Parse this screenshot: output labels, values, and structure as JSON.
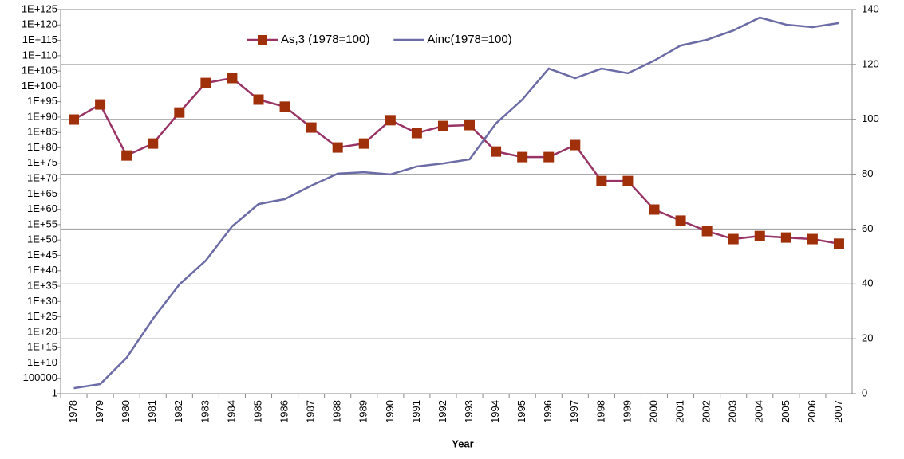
{
  "chart_data": {
    "type": "line",
    "x_label": "Year",
    "categories": [
      "1978",
      "1979",
      "1980",
      "1981",
      "1982",
      "1983",
      "1984",
      "1985",
      "1986",
      "1987",
      "1988",
      "1989",
      "1990",
      "1991",
      "1992",
      "1993",
      "1994",
      "1995",
      "1996",
      "1997",
      "1998",
      "1999",
      "2000",
      "2001",
      "2002",
      "2003",
      "2004",
      "2005",
      "2006",
      "2007"
    ],
    "series": [
      {
        "name": "As,3 (1978=100)",
        "color": "#993366",
        "marker_color": "#a0300a",
        "marker": "square",
        "axis": "y",
        "values": [
          1.6e+89,
          1.3e+94,
          3.2e+77,
          2.5e+81,
          3.2e+91,
          1.3e+101,
          5e+102,
          5e+95,
          2.5e+93,
          4e+86,
          1.3e+80,
          2.5e+81,
          1e+89,
          6.3e+84,
          1.3e+87,
          2.5e+87,
          6.3e+78,
          1e+77,
          1e+77,
          8e+80,
          1.6e+69,
          1.6e+69,
          8e+59,
          2e+56,
          8e+52,
          2e+50,
          2e+51,
          6.3e+50,
          2e+50,
          6.3e+48
        ]
      },
      {
        "name": "Ainc(1978=100)",
        "color": "#6b6ba6",
        "marker": "none",
        "axis": "y2",
        "values": [
          2.0,
          3.5,
          13.1,
          27.3,
          39.8,
          48.5,
          61,
          69.1,
          70.9,
          75.8,
          80.2,
          80.7,
          79.9,
          82.8,
          83.9,
          85.4,
          98.5,
          107.2,
          118.5,
          115,
          118.5,
          116.8,
          121.4,
          126.9,
          129,
          132.4,
          137.1,
          134.5,
          133.6,
          135.1
        ]
      }
    ],
    "ylog": true,
    "ylim": [
      1,
      1e+125
    ],
    "yticks": [
      1,
      100000,
      {
        "value": 10000000000.0,
        "label": "1E+10"
      },
      {
        "value": 1000000000000000.0,
        "label": "1E+15"
      },
      {
        "value": 1e+20,
        "label": "1E+20"
      },
      {
        "value": 1e+25,
        "label": "1E+25"
      },
      {
        "value": 1e+30,
        "label": "1E+30"
      },
      {
        "value": 1e+35,
        "label": "1E+35"
      },
      {
        "value": 1e+40,
        "label": "1E+40"
      },
      {
        "value": 1e+45,
        "label": "1E+45"
      },
      {
        "value": 1e+50,
        "label": "1E+50"
      },
      {
        "value": 1e+55,
        "label": "1E+55"
      },
      {
        "value": 1e+60,
        "label": "1E+60"
      },
      {
        "value": 1e+65,
        "label": "1E+65"
      },
      {
        "value": 1e+70,
        "label": "1E+70"
      },
      {
        "value": 1e+75,
        "label": "1E+75"
      },
      {
        "value": 1e+80,
        "label": "1E+80"
      },
      {
        "value": 1e+85,
        "label": "1E+85"
      },
      {
        "value": 1e+90,
        "label": "1E+90"
      },
      {
        "value": 1e+95,
        "label": "1E+95"
      },
      {
        "value": 1e+100,
        "label": "1E+100"
      },
      {
        "value": 1e+105,
        "label": "1E+105"
      },
      {
        "value": 1e+110,
        "label": "1E+110"
      },
      {
        "value": 1e+115,
        "label": "1E+115"
      },
      {
        "value": 1e+120,
        "label": "1E+120"
      },
      {
        "value": 1e+125,
        "label": "1E+125"
      }
    ],
    "y2lim": [
      0,
      140
    ],
    "y2ticks": [
      0,
      20,
      40,
      60,
      80,
      100,
      120,
      140
    ],
    "grid": true,
    "legend": "top"
  }
}
